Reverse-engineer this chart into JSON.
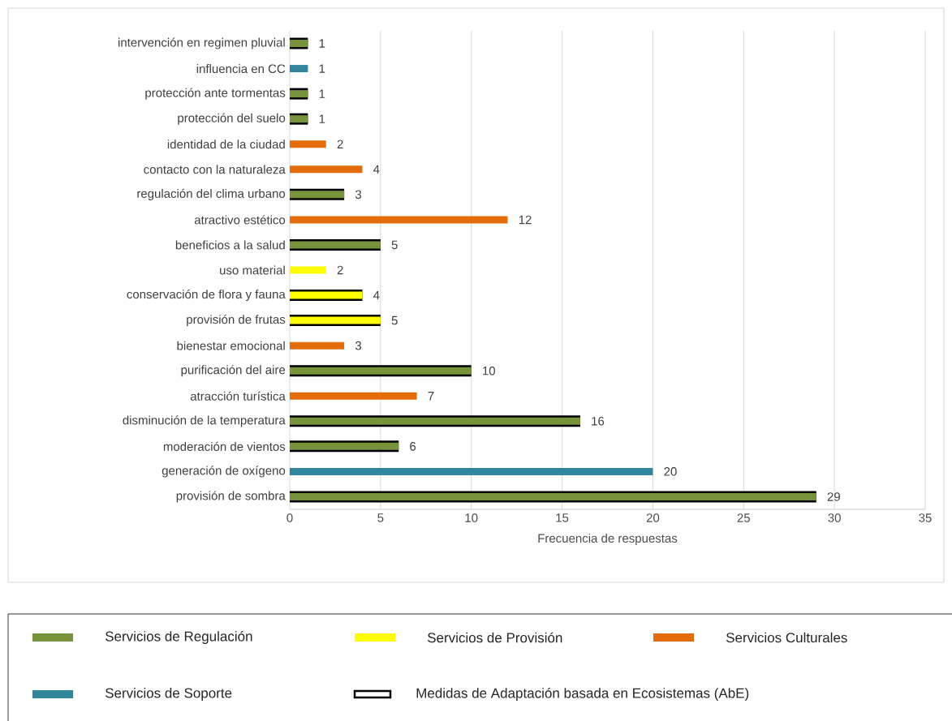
{
  "chart_data": {
    "type": "bar",
    "orientation": "horizontal",
    "xlabel": "Frecuencia de respuestas",
    "categories": [
      "intervención en regimen pluvial",
      "influencia en CC",
      "protección ante tormentas",
      "protección del suelo",
      "identidad de la ciudad",
      "contacto con la naturaleza",
      "regulación del clima urbano",
      "atractivo estético",
      "beneficios a la salud",
      "uso material",
      "conservación de flora y fauna",
      "provisión de frutas",
      "bienestar emocional",
      "purificación del aire",
      "atracción turística",
      "disminución de la temperatura",
      "moderación de vientos",
      "generación de oxígeno",
      "provisión de sombra"
    ],
    "series": [
      {
        "name": "Servicios de Regulación",
        "color": "#77933c",
        "values": [
          1,
          null,
          1,
          1,
          null,
          null,
          3,
          null,
          5,
          null,
          null,
          null,
          null,
          10,
          null,
          16,
          6,
          null,
          29
        ]
      },
      {
        "name": "Servicios de Provisión",
        "color": "#ffff00",
        "values": [
          null,
          null,
          null,
          null,
          null,
          null,
          null,
          null,
          null,
          2,
          4,
          5,
          null,
          null,
          null,
          null,
          null,
          null,
          null
        ],
        "value_labels": [
          null,
          null,
          null,
          null,
          null,
          null,
          null,
          null,
          null,
          "2",
          null,
          null,
          null,
          null,
          null,
          null,
          null,
          null,
          null
        ]
      },
      {
        "name": "Servicios Culturales",
        "color": "#e46c0a",
        "values": [
          null,
          null,
          null,
          null,
          2,
          4,
          null,
          12,
          null,
          null,
          null,
          null,
          3,
          null,
          7,
          null,
          null,
          null,
          null
        ],
        "value_labels": [
          null,
          null,
          null,
          null,
          "2",
          "4",
          null,
          "12",
          null,
          null,
          null,
          null,
          "3",
          null,
          "7",
          null,
          null,
          null,
          null
        ]
      },
      {
        "name": "Servicios de Soporte",
        "color": "#31859c",
        "values": [
          null,
          1,
          null,
          null,
          null,
          null,
          null,
          null,
          null,
          null,
          null,
          null,
          null,
          null,
          null,
          null,
          null,
          20,
          null
        ],
        "value_labels": [
          null,
          "1",
          null,
          null,
          null,
          null,
          null,
          null,
          null,
          null,
          null,
          null,
          null,
          null,
          null,
          null,
          null,
          "20",
          null
        ]
      },
      {
        "name": "Medidas de Adaptación basada en Ecosistemas (AbE)",
        "color": "#000000",
        "values": [
          1,
          null,
          1,
          1,
          null,
          null,
          3,
          null,
          5,
          null,
          4,
          5,
          null,
          10,
          null,
          16,
          6,
          null,
          29
        ],
        "value_labels": [
          "1",
          null,
          "1",
          "1",
          null,
          null,
          "3",
          null,
          "5",
          null,
          "4",
          "5",
          null,
          "10",
          null,
          "16",
          "6",
          null,
          "29"
        ]
      }
    ],
    "xlim": [
      0,
      35
    ],
    "xticks": [
      0,
      5,
      10,
      15,
      20,
      25,
      30,
      35
    ],
    "grid": "x",
    "legend": "bottom"
  }
}
